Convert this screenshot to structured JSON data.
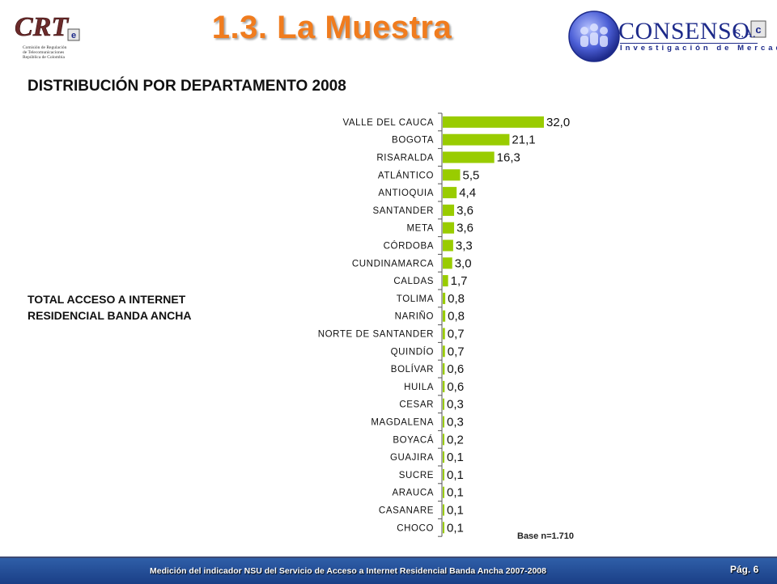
{
  "slide": {
    "title": "1.3. La Muestra",
    "subtitle": "DISTRIBUCIÓN POR DEPARTAMENTO 2008",
    "side_label_line1": "TOTAL ACCESO A INTERNET",
    "side_label_line2": "RESIDENCIAL BANDA ANCHA",
    "base_note": "Base n=1.710"
  },
  "logos": {
    "crt_text": "CRT",
    "crt_badge": "e",
    "crt_caption": [
      "Comisión de Regulación",
      "de Telecomunicaciones",
      "República de Colombia"
    ],
    "consenso_name": "CONSENSO",
    "consenso_sa": "S.A.",
    "consenso_tagline": "Investigación de Mercados"
  },
  "footer": {
    "text": "Medición del indicador NSU del Servicio de Acceso a Internet Residencial Banda Ancha 2007-2008",
    "page": "Pág. 6"
  },
  "colors": {
    "bar": "#99cc00",
    "title": "#f07c1e",
    "footer": "#1f4a91",
    "brand_blue": "#1d2a8a"
  },
  "chart_data": {
    "type": "bar",
    "orientation": "horizontal",
    "categories": [
      "VALLE DEL CAUCA",
      "BOGOTA",
      "RISARALDA",
      "ATLÁNTICO",
      "ANTIOQUIA",
      "SANTANDER",
      "META",
      "CÓRDOBA",
      "CUNDINAMARCA",
      "CALDAS",
      "TOLIMA",
      "NARIÑO",
      "NORTE DE SANTANDER",
      "QUINDÍO",
      "BOLÍVAR",
      "HUILA",
      "CESAR",
      "MAGDALENA",
      "BOYACÁ",
      "GUAJIRA",
      "SUCRE",
      "ARAUCA",
      "CASANARE",
      "CHOCO"
    ],
    "values": [
      32.0,
      21.1,
      16.3,
      5.5,
      4.4,
      3.6,
      3.6,
      3.3,
      3.0,
      1.7,
      0.8,
      0.8,
      0.7,
      0.7,
      0.6,
      0.6,
      0.3,
      0.3,
      0.2,
      0.1,
      0.1,
      0.1,
      0.1,
      0.1
    ],
    "value_labels": [
      "32,0",
      "21,1",
      "16,3",
      "5,5",
      "4,4",
      "3,6",
      "3,6",
      "3,3",
      "3,0",
      "1,7",
      "0,8",
      "0,8",
      "0,7",
      "0,7",
      "0,6",
      "0,6",
      "0,3",
      "0,3",
      "0,2",
      "0,1",
      "0,1",
      "0,1",
      "0,1",
      "0,1"
    ],
    "xlim": [
      0,
      32
    ],
    "grid": false,
    "legend": "none"
  }
}
